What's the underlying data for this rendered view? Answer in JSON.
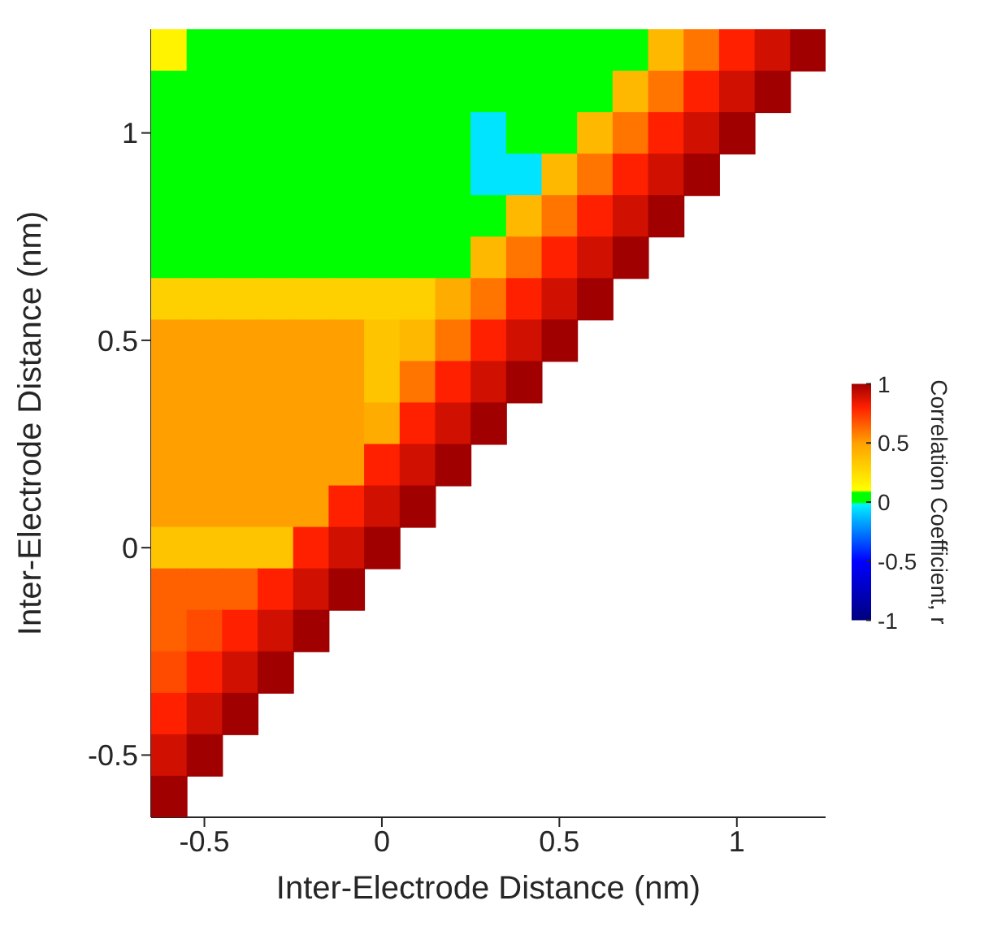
{
  "chart_data": {
    "type": "heatmap",
    "xlabel": "Inter-Electrode Distance (nm)",
    "ylabel": "Inter-Electrode Distance (nm)",
    "clabel": "Correlation Coefficient, r",
    "x": [
      -0.6,
      -0.5,
      -0.4,
      -0.3,
      -0.2,
      -0.1,
      0,
      0.1,
      0.2,
      0.3,
      0.4,
      0.5,
      0.6,
      0.7,
      0.8,
      0.9,
      1,
      1.1,
      1.2
    ],
    "y": [
      1.2,
      1.1,
      1,
      0.9,
      0.8,
      0.7,
      0.6,
      0.5,
      0.4,
      0.3,
      0.2,
      0.1,
      0,
      -0.1,
      -0.2,
      -0.3,
      -0.4,
      -0.5,
      -0.6
    ],
    "cells": [
      [
        0.15,
        0.05,
        0.05,
        0.05,
        0.05,
        0.05,
        0.05,
        0.05,
        0.05,
        0.05,
        0.05,
        0.05,
        0.05,
        0.05,
        0.4,
        0.6,
        0.8,
        0.9,
        1
      ],
      [
        0.05,
        0.05,
        0.05,
        0.05,
        0.05,
        0.05,
        0.05,
        0.05,
        0.05,
        0.05,
        0.05,
        0.05,
        0.05,
        0.4,
        0.6,
        0.8,
        0.9,
        1,
        null
      ],
      [
        0.05,
        0.05,
        0.05,
        0.05,
        0.05,
        0.05,
        0.05,
        0.05,
        0.05,
        -0.05,
        0.05,
        0.05,
        0.4,
        0.6,
        0.8,
        0.9,
        1,
        null,
        null
      ],
      [
        0.05,
        0.05,
        0.05,
        0.05,
        0.05,
        0.05,
        0.05,
        0.05,
        0.05,
        -0.05,
        -0.05,
        0.4,
        0.6,
        0.8,
        0.9,
        1,
        null,
        null,
        null
      ],
      [
        0.05,
        0.05,
        0.05,
        0.05,
        0.05,
        0.05,
        0.05,
        0.05,
        0.05,
        0.05,
        0.4,
        0.6,
        0.8,
        0.9,
        1,
        null,
        null,
        null,
        null
      ],
      [
        0.05,
        0.05,
        0.05,
        0.05,
        0.05,
        0.05,
        0.05,
        0.05,
        0.05,
        0.4,
        0.6,
        0.8,
        0.9,
        1,
        null,
        null,
        null,
        null,
        null
      ],
      [
        0.3,
        0.3,
        0.3,
        0.3,
        0.3,
        0.3,
        0.3,
        0.3,
        0.45,
        0.6,
        0.8,
        0.9,
        1,
        null,
        null,
        null,
        null,
        null,
        null
      ],
      [
        0.5,
        0.5,
        0.5,
        0.5,
        0.5,
        0.5,
        0.35,
        0.4,
        0.6,
        0.8,
        0.9,
        1,
        null,
        null,
        null,
        null,
        null,
        null,
        null
      ],
      [
        0.5,
        0.5,
        0.5,
        0.5,
        0.5,
        0.5,
        0.35,
        0.6,
        0.8,
        0.9,
        1,
        null,
        null,
        null,
        null,
        null,
        null,
        null,
        null
      ],
      [
        0.5,
        0.5,
        0.5,
        0.5,
        0.5,
        0.5,
        0.45,
        0.8,
        0.9,
        1,
        null,
        null,
        null,
        null,
        null,
        null,
        null,
        null,
        null
      ],
      [
        0.5,
        0.5,
        0.5,
        0.5,
        0.5,
        0.5,
        0.8,
        0.9,
        1,
        null,
        null,
        null,
        null,
        null,
        null,
        null,
        null,
        null,
        null
      ],
      [
        0.5,
        0.5,
        0.5,
        0.5,
        0.5,
        0.8,
        0.9,
        1,
        null,
        null,
        null,
        null,
        null,
        null,
        null,
        null,
        null,
        null,
        null
      ],
      [
        0.35,
        0.35,
        0.35,
        0.35,
        0.8,
        0.9,
        1,
        null,
        null,
        null,
        null,
        null,
        null,
        null,
        null,
        null,
        null,
        null,
        null
      ],
      [
        0.65,
        0.65,
        0.65,
        0.8,
        0.9,
        1,
        null,
        null,
        null,
        null,
        null,
        null,
        null,
        null,
        null,
        null,
        null,
        null,
        null
      ],
      [
        0.65,
        0.7,
        0.8,
        0.9,
        1,
        null,
        null,
        null,
        null,
        null,
        null,
        null,
        null,
        null,
        null,
        null,
        null,
        null,
        null
      ],
      [
        0.7,
        0.8,
        0.9,
        1,
        null,
        null,
        null,
        null,
        null,
        null,
        null,
        null,
        null,
        null,
        null,
        null,
        null,
        null,
        null
      ],
      [
        0.8,
        0.9,
        1,
        null,
        null,
        null,
        null,
        null,
        null,
        null,
        null,
        null,
        null,
        null,
        null,
        null,
        null,
        null,
        null
      ],
      [
        0.9,
        1,
        null,
        null,
        null,
        null,
        null,
        null,
        null,
        null,
        null,
        null,
        null,
        null,
        null,
        null,
        null,
        null,
        null
      ],
      [
        1,
        null,
        null,
        null,
        null,
        null,
        null,
        null,
        null,
        null,
        null,
        null,
        null,
        null,
        null,
        null,
        null,
        null,
        null
      ]
    ],
    "xlim": [
      -0.65,
      1.25
    ],
    "ylim": [
      -0.65,
      1.25
    ],
    "xticks": [
      -0.5,
      0,
      0.5,
      1
    ],
    "yticks": [
      -0.5,
      0,
      0.5,
      1
    ],
    "clim": [
      -1,
      1
    ],
    "cticks": [
      -1,
      -0.5,
      0,
      0.5,
      1
    ]
  }
}
